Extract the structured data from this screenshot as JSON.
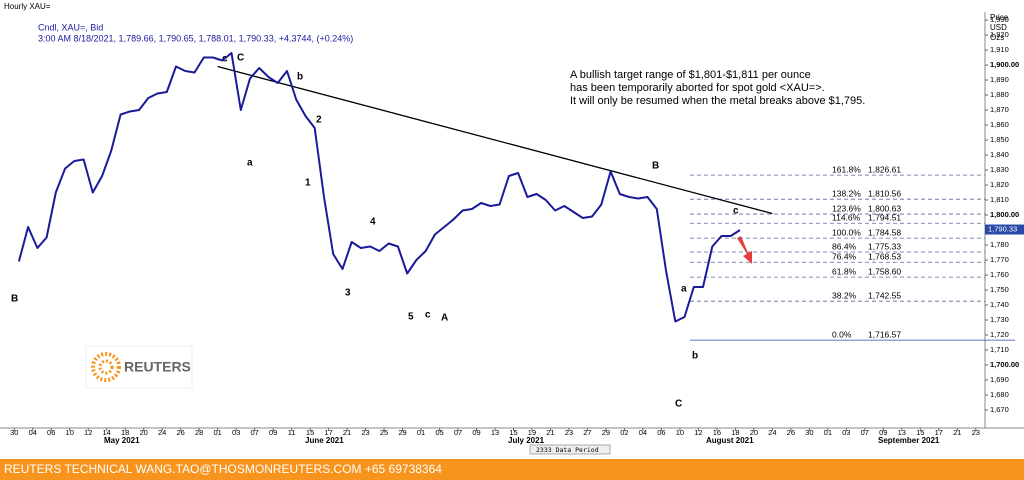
{
  "chart_data": {
    "type": "line",
    "title": "Hourly XAU=",
    "subtitle": "Cndl, XAU=, Bid",
    "quote": "3:00 AM 8/18/2021, 1,789.66, 1,790.65, 1,788.01, 1,790.33, +4.3744, (+0.24%)",
    "y_axis_label": [
      "Price",
      "USD",
      "Ozs"
    ],
    "note": [
      "A bullish target range of $1,801-$1,811 per ounce",
      "has been temporarily aborted for spot gold <XAU=>.",
      "It will only be resumed when the metal breaks above $1,795."
    ],
    "color": "#1a1a9a",
    "x": [
      "2021-04-30",
      "2021-05-03",
      "2021-05-04",
      "2021-05-05",
      "2021-05-06",
      "2021-05-07",
      "2021-05-10",
      "2021-05-11",
      "2021-05-12",
      "2021-05-13",
      "2021-05-14",
      "2021-05-17",
      "2021-05-18",
      "2021-05-19",
      "2021-05-20",
      "2021-05-21",
      "2021-05-24",
      "2021-05-25",
      "2021-05-26",
      "2021-05-27",
      "2021-05-28",
      "2021-05-31",
      "2021-06-01",
      "2021-06-02",
      "2021-06-03",
      "2021-06-04",
      "2021-06-07",
      "2021-06-08",
      "2021-06-09",
      "2021-06-10",
      "2021-06-11",
      "2021-06-14",
      "2021-06-15",
      "2021-06-16",
      "2021-06-17",
      "2021-06-18",
      "2021-06-21",
      "2021-06-22",
      "2021-06-23",
      "2021-06-24",
      "2021-06-25",
      "2021-06-28",
      "2021-06-29",
      "2021-06-30",
      "2021-07-01",
      "2021-07-02",
      "2021-07-05",
      "2021-07-06",
      "2021-07-07",
      "2021-07-08",
      "2021-07-09",
      "2021-07-12",
      "2021-07-13",
      "2021-07-14",
      "2021-07-15",
      "2021-07-16",
      "2021-07-19",
      "2021-07-20",
      "2021-07-21",
      "2021-07-22",
      "2021-07-23",
      "2021-07-26",
      "2021-07-27",
      "2021-07-28",
      "2021-07-29",
      "2021-07-30",
      "2021-08-02",
      "2021-08-03",
      "2021-08-04",
      "2021-08-05",
      "2021-08-06",
      "2021-08-09",
      "2021-08-10",
      "2021-08-11",
      "2021-08-12",
      "2021-08-13",
      "2021-08-16",
      "2021-08-17",
      "2021-08-18"
    ],
    "values": [
      1769,
      1792,
      1778,
      1785,
      1815,
      1831,
      1836,
      1837,
      1815,
      1826,
      1843,
      1867,
      1869,
      1870,
      1878,
      1881,
      1882,
      1899,
      1896,
      1895,
      1905,
      1905,
      1903,
      1908,
      1870,
      1891,
      1898,
      1892,
      1888,
      1896,
      1877,
      1866,
      1858,
      1812,
      1774,
      1764,
      1782,
      1778,
      1779,
      1776,
      1781,
      1779,
      1761,
      1770,
      1776,
      1787,
      1792,
      1797,
      1803,
      1804,
      1808,
      1806,
      1807,
      1826,
      1828,
      1812,
      1814,
      1810,
      1803,
      1806,
      1802,
      1798,
      1799,
      1807,
      1829,
      1814,
      1812,
      1811,
      1812,
      1804,
      1763,
      1729,
      1732,
      1752,
      1752,
      1779,
      1786,
      1786,
      1790
    ],
    "xlim": [
      "2021-04-29",
      "2021-09-24"
    ],
    "xticks": [
      {
        "value": "2021-04-30",
        "label": "30"
      },
      {
        "value": "2021-05-04",
        "label": "04"
      },
      {
        "value": "2021-05-06",
        "label": "06"
      },
      {
        "value": "2021-05-10",
        "label": "10"
      },
      {
        "value": "2021-05-12",
        "label": "12"
      },
      {
        "value": "2021-05-14",
        "label": "14"
      },
      {
        "value": "2021-05-18",
        "label": "18"
      },
      {
        "value": "2021-05-20",
        "label": "20"
      },
      {
        "value": "2021-05-24",
        "label": "24"
      },
      {
        "value": "2021-05-26",
        "label": "26"
      },
      {
        "value": "2021-05-28",
        "label": "28"
      },
      {
        "value": "2021-06-01",
        "label": "01"
      },
      {
        "value": "2021-06-03",
        "label": "03"
      },
      {
        "value": "2021-06-07",
        "label": "07"
      },
      {
        "value": "2021-06-09",
        "label": "09"
      },
      {
        "value": "2021-06-11",
        "label": "11"
      },
      {
        "value": "2021-06-15",
        "label": "15"
      },
      {
        "value": "2021-06-17",
        "label": "17"
      },
      {
        "value": "2021-06-21",
        "label": "21"
      },
      {
        "value": "2021-06-23",
        "label": "23"
      },
      {
        "value": "2021-06-25",
        "label": "25"
      },
      {
        "value": "2021-06-29",
        "label": "29"
      },
      {
        "value": "2021-07-01",
        "label": "01"
      },
      {
        "value": "2021-07-05",
        "label": "05"
      },
      {
        "value": "2021-07-07",
        "label": "07"
      },
      {
        "value": "2021-07-09",
        "label": "09"
      },
      {
        "value": "2021-07-13",
        "label": "13"
      },
      {
        "value": "2021-07-15",
        "label": "15"
      },
      {
        "value": "2021-07-19",
        "label": "19"
      },
      {
        "value": "2021-07-21",
        "label": "21"
      },
      {
        "value": "2021-07-23",
        "label": "23"
      },
      {
        "value": "2021-07-27",
        "label": "27"
      },
      {
        "value": "2021-07-29",
        "label": "29"
      },
      {
        "value": "2021-08-02",
        "label": "02"
      },
      {
        "value": "2021-08-04",
        "label": "04"
      },
      {
        "value": "2021-08-06",
        "label": "06"
      },
      {
        "value": "2021-08-10",
        "label": "10"
      },
      {
        "value": "2021-08-12",
        "label": "12"
      },
      {
        "value": "2021-08-16",
        "label": "16"
      },
      {
        "value": "2021-08-18",
        "label": "18"
      },
      {
        "value": "2021-08-20",
        "label": "20"
      },
      {
        "value": "2021-08-24",
        "label": "24"
      },
      {
        "value": "2021-08-26",
        "label": "26"
      },
      {
        "value": "2021-08-30",
        "label": "30"
      },
      {
        "value": "2021-09-01",
        "label": "01"
      },
      {
        "value": "2021-09-03",
        "label": "03"
      },
      {
        "value": "2021-09-07",
        "label": "07"
      },
      {
        "value": "2021-09-09",
        "label": "09"
      },
      {
        "value": "2021-09-13",
        "label": "13"
      },
      {
        "value": "2021-09-15",
        "label": "15"
      },
      {
        "value": "2021-09-17",
        "label": "17"
      },
      {
        "value": "2021-09-21",
        "label": "21"
      },
      {
        "value": "2021-09-23",
        "label": "23"
      }
    ],
    "months": [
      "May 2021",
      "June 2021",
      "July 2021",
      "August 2021",
      "September 2021"
    ],
    "ylim": [
      1660,
      1936.7
    ],
    "yticks": [
      {
        "value": 1670,
        "label": "1,670"
      },
      {
        "value": 1680,
        "label": "1,680"
      },
      {
        "value": 1690,
        "label": "1,690"
      },
      {
        "value": 1700,
        "label": "1,700.00"
      },
      {
        "value": 1710,
        "label": "1,710"
      },
      {
        "value": 1720,
        "label": "1,720"
      },
      {
        "value": 1730,
        "label": "1,730"
      },
      {
        "value": 1740,
        "label": "1,740"
      },
      {
        "value": 1750,
        "label": "1,750"
      },
      {
        "value": 1760,
        "label": "1,760"
      },
      {
        "value": 1770,
        "label": "1,770"
      },
      {
        "value": 1780,
        "label": "1,780"
      },
      {
        "value": 1800,
        "label": "1,800.00"
      },
      {
        "value": 1810,
        "label": "1,810"
      },
      {
        "value": 1820,
        "label": "1,820"
      },
      {
        "value": 1830,
        "label": "1,830"
      },
      {
        "value": 1840,
        "label": "1,840"
      },
      {
        "value": 1850,
        "label": "1,850"
      },
      {
        "value": 1860,
        "label": "1,860"
      },
      {
        "value": 1870,
        "label": "1,870"
      },
      {
        "value": 1880,
        "label": "1,880"
      },
      {
        "value": 1890,
        "label": "1,890"
      },
      {
        "value": 1900,
        "label": "1,900.00"
      },
      {
        "value": 1910,
        "label": "1,910"
      },
      {
        "value": 1920,
        "label": "1,920"
      },
      {
        "value": 1930,
        "label": "1,930"
      }
    ],
    "last_price": {
      "value": 1790.33,
      "label": "1,790.33"
    },
    "trendline": {
      "x": [
        "2021-06-01",
        "2021-08-24"
      ],
      "values": [
        1899,
        1801
      ]
    },
    "fib": {
      "labels": [
        "161.8%",
        "138.2%",
        "123.6%",
        "114.6%",
        "100.0%",
        "86.4%",
        "76.4%",
        "61.8%",
        "38.2%",
        "0.0%"
      ],
      "values": [
        1826.61,
        1810.56,
        1800.63,
        1794.51,
        1784.58,
        1775.33,
        1768.53,
        1758.6,
        1742.55,
        1716.57
      ],
      "value_labels": [
        "1,826.61",
        "1,810.56",
        "1,800.63",
        "1,794.51",
        "1,784.58",
        "1,775.33",
        "1,768.53",
        "1,758.60",
        "1,742.55",
        "1,716.57"
      ]
    },
    "waves": [
      "c",
      "C",
      "b",
      "a",
      "2",
      "1",
      "4",
      "3",
      "5",
      "c",
      "A",
      "B",
      "a",
      "b",
      "C",
      "c",
      "B"
    ],
    "data_period": "2333 Data Period",
    "logo": "REUTERS",
    "footer": "REUTERS TECHNICAL  WANG.TAO@THOSMONREUTERS.COM  +65 69738364"
  }
}
